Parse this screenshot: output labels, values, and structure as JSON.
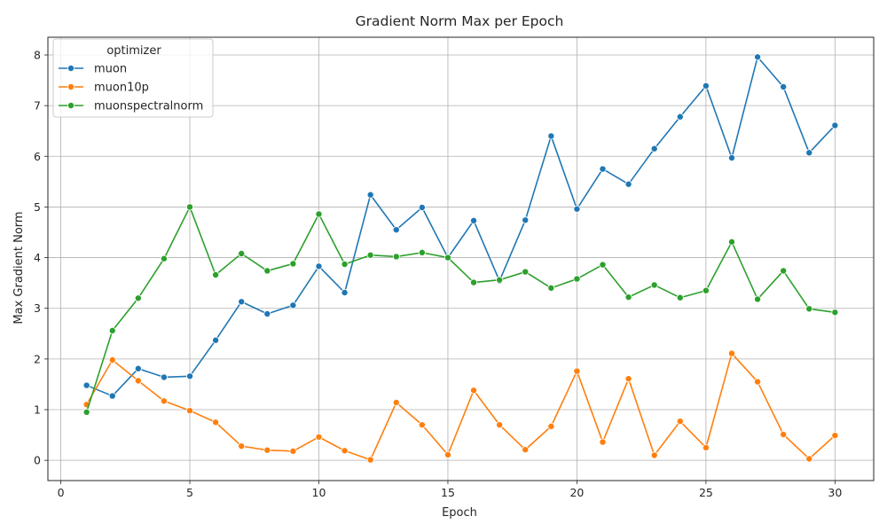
{
  "chart_data": {
    "type": "line",
    "title": "Gradient Norm Max per Epoch",
    "xlabel": "Epoch",
    "ylabel": "Max Gradient Norm",
    "xlim": [
      -0.5,
      31.5
    ],
    "ylim": [
      -0.4,
      8.35
    ],
    "xticks": [
      0,
      5,
      10,
      15,
      20,
      25,
      30
    ],
    "yticks": [
      0,
      1,
      2,
      3,
      4,
      5,
      6,
      7,
      8
    ],
    "grid": true,
    "legend": {
      "title": "optimizer",
      "position": "top-left"
    },
    "x": [
      1,
      2,
      3,
      4,
      5,
      6,
      7,
      8,
      9,
      10,
      11,
      12,
      13,
      14,
      15,
      16,
      17,
      18,
      19,
      20,
      21,
      22,
      23,
      24,
      25,
      26,
      27,
      28,
      29,
      30
    ],
    "series": [
      {
        "name": "muon",
        "color": "#1f77b4",
        "values": [
          1.48,
          1.27,
          1.81,
          1.64,
          1.66,
          2.37,
          3.13,
          2.89,
          3.06,
          3.83,
          3.31,
          5.24,
          4.55,
          4.99,
          4.0,
          4.73,
          3.54,
          4.74,
          6.4,
          4.96,
          5.75,
          5.45,
          6.15,
          6.78,
          7.39,
          5.97,
          7.96,
          7.37,
          6.07,
          6.61
        ]
      },
      {
        "name": "muon10p",
        "color": "#ff7f0e",
        "values": [
          1.1,
          1.98,
          1.57,
          1.17,
          0.98,
          0.75,
          0.28,
          0.2,
          0.18,
          0.46,
          0.19,
          0.01,
          1.14,
          0.7,
          0.11,
          1.38,
          0.7,
          0.21,
          0.67,
          1.76,
          0.36,
          1.61,
          0.1,
          0.77,
          0.25,
          2.11,
          1.55,
          0.51,
          0.03,
          0.49
        ]
      },
      {
        "name": "muonspectralnorm",
        "color": "#2ca02c",
        "values": [
          0.95,
          2.56,
          3.2,
          3.98,
          5.0,
          3.66,
          4.08,
          3.74,
          3.88,
          4.86,
          3.87,
          4.05,
          4.02,
          4.1,
          4.0,
          3.51,
          3.56,
          3.72,
          3.4,
          3.58,
          3.86,
          3.22,
          3.46,
          3.21,
          3.35,
          4.31,
          3.18,
          3.74,
          2.99,
          2.92
        ]
      }
    ]
  }
}
